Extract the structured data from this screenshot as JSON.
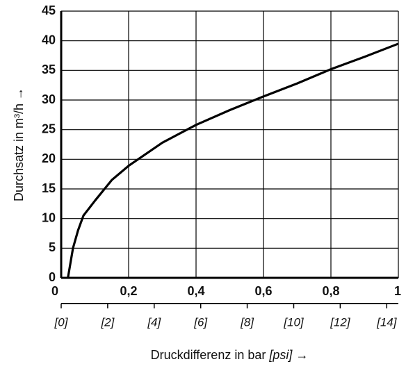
{
  "chart_data": {
    "type": "line",
    "x": [
      0.02,
      0.035,
      0.05,
      0.066,
      0.1,
      0.15,
      0.2,
      0.3,
      0.4,
      0.5,
      0.6,
      0.7,
      0.8,
      0.9,
      1.0
    ],
    "series": [
      {
        "color": "#000000",
        "values": [
          0,
          5,
          8,
          10.5,
          13,
          16.5,
          18.9,
          22.8,
          25.8,
          28.3,
          30.6,
          32.8,
          35.2,
          37.3,
          39.5
        ]
      }
    ],
    "xlim": [
      0,
      1
    ],
    "xticks": [
      0,
      {
        "value": 0.2,
        "label": "0,2"
      },
      {
        "value": 0.4,
        "label": "0,4"
      },
      {
        "value": 0.6,
        "label": "0,6"
      },
      {
        "value": 0.8,
        "label": "0,8"
      },
      1
    ],
    "ylim": [
      0,
      45
    ],
    "yticks": [
      0,
      5,
      10,
      15,
      20,
      25,
      30,
      35,
      40,
      45
    ],
    "x2lim": [
      0,
      14.5
    ],
    "x2ticks": [
      {
        "value": 0,
        "label": "[0]"
      },
      {
        "value": 2,
        "label": "[2]"
      },
      {
        "value": 4,
        "label": "[4]"
      },
      {
        "value": 6,
        "label": "[6]"
      },
      {
        "value": 8,
        "label": "[8]"
      },
      {
        "value": 10,
        "label": "[10]"
      },
      {
        "value": 12,
        "label": "[12]"
      },
      {
        "value": 14,
        "label": "[14]"
      }
    ],
    "xlabel": [
      "Druckdifferenz in bar ",
      "[psi]",
      " →"
    ],
    "ylabel": "Durchsatz in m³/h →",
    "grid": true
  }
}
